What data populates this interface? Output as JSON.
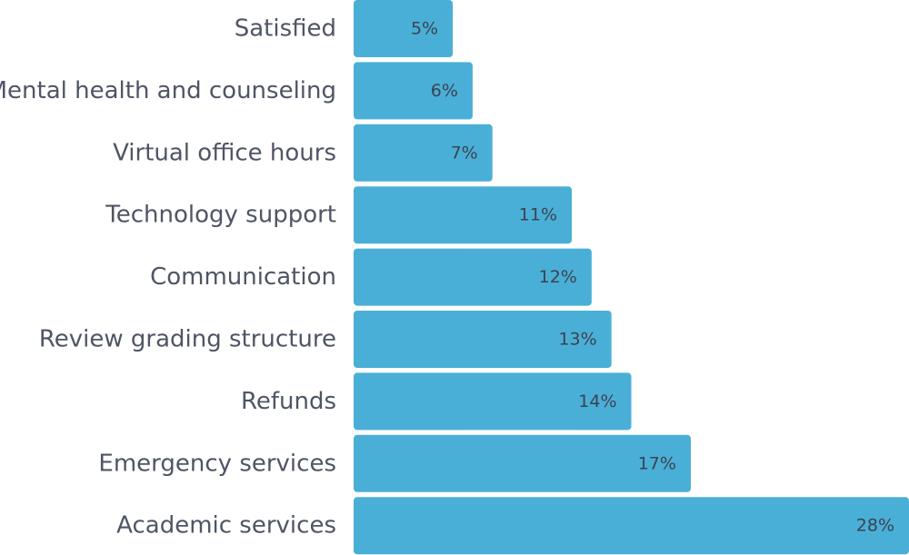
{
  "colors": {
    "bar": "#4aafd7",
    "category_text": "#4f5565",
    "value_text": "#3c4250",
    "background": "#ffffff"
  },
  "chart_data": {
    "type": "bar",
    "orientation": "horizontal",
    "categories": [
      "Satisfied",
      "Mental health and counseling",
      "Virtual office hours",
      "Technology support",
      "Communication",
      "Review grading structure",
      "Refunds",
      "Emergency services",
      "Academic services"
    ],
    "values": [
      5,
      6,
      7,
      11,
      12,
      13,
      14,
      17,
      28
    ],
    "value_labels": [
      "5%",
      "6%",
      "7%",
      "11%",
      "12%",
      "13%",
      "14%",
      "17%",
      "28%"
    ],
    "unit": "%",
    "title": "",
    "xlabel": "",
    "ylabel": "",
    "xlim": [
      0,
      28
    ],
    "grid": false,
    "legend": "none"
  }
}
